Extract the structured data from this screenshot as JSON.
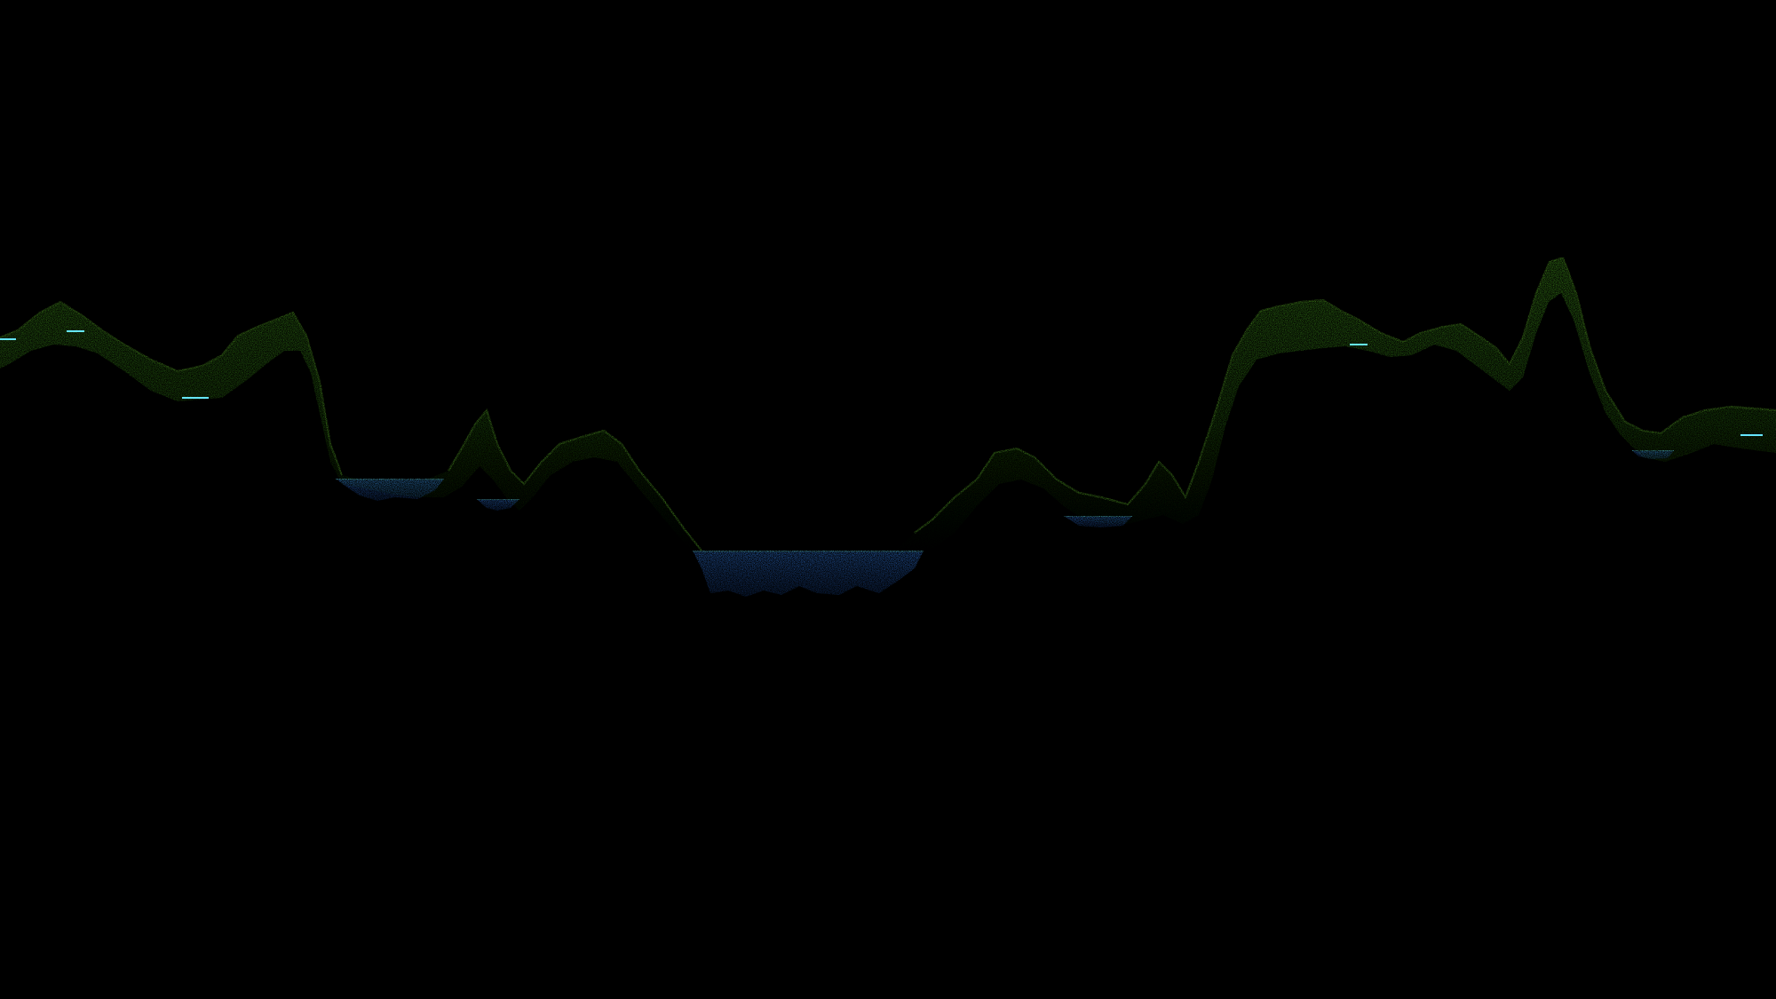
{
  "scene": {
    "description_type": "point-cloud terrain profile",
    "background_color": "#000000",
    "terrain_color": "#3f9a1a",
    "terrain_highlight_color": "#6ccf2a",
    "water_color": "#2f78e6",
    "water_surface_color": "#5fe0ff"
  }
}
